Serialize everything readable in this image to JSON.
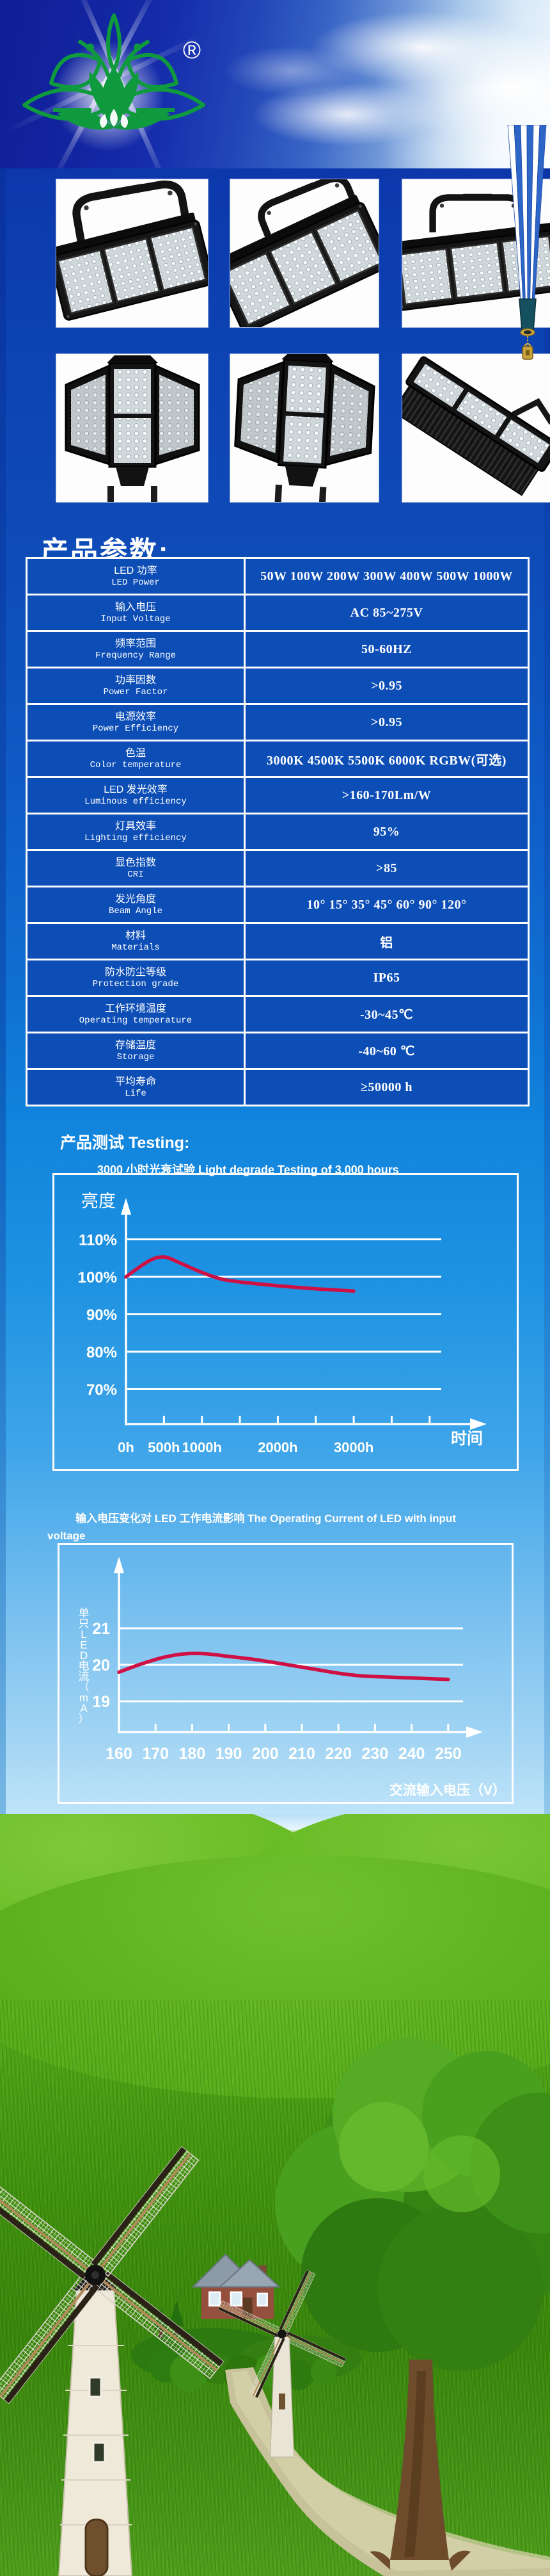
{
  "header": {
    "registered_mark": "®",
    "logo_icon": "lotus-logo"
  },
  "colors": {
    "accent_curve": "#ce1045",
    "table_cell_blue": "#0d4eb6",
    "deep_blue": "#0c38ac",
    "sky_light": "#bfe4f9",
    "grass_green": "#55a819",
    "logo_green": "#0f9a3e"
  },
  "sections": {
    "params_title": "产品参数:",
    "testing_title": "产品测试 Testing:",
    "degrade_subtitle": "3000 小时光衰试验  Light degrade Testing of 3,000 hours",
    "current_line1": "输入电压变化对  LED 工作电流影响   The Operating Current of LED with input",
    "current_line2": "voltage"
  },
  "spec_table": {
    "rows": [
      {
        "cn": "LED 功率",
        "en": "LED Power",
        "value": "50W 100W 200W 300W 400W 500W 1000W"
      },
      {
        "cn": "输入电压",
        "en": "Input Voltage",
        "value": "AC 85~275V"
      },
      {
        "cn": "频率范围",
        "en": "Frequency Range",
        "value": "50-60HZ"
      },
      {
        "cn": "功率因数",
        "en": "Power Factor",
        "value": ">0.95"
      },
      {
        "cn": "电源效率",
        "en": "Power Efficiency",
        "value": ">0.95"
      },
      {
        "cn": "色温",
        "en": "Color temperature",
        "value": "3000K  4500K  5500K  6000K  RGBW(可选)"
      },
      {
        "cn": "LED 发光效率",
        "en": "Luminous efficiency",
        "value": ">160-170Lm/W"
      },
      {
        "cn": "灯具效率",
        "en": "Lighting efficiency",
        "value": "95%"
      },
      {
        "cn": "显色指数",
        "en": "CRI",
        "value": ">85"
      },
      {
        "cn": "发光角度",
        "en": "Beam Angle",
        "value": "10°  15°  35°  45°  60°  90°  120°"
      },
      {
        "cn": "材料",
        "en": "Materials",
        "value": "铝"
      },
      {
        "cn": "防水防尘等级",
        "en": "Protection grade",
        "value": "IP65"
      },
      {
        "cn": "工作环境温度",
        "en": "Operating temperature",
        "value": "-30~45℃"
      },
      {
        "cn": "存储温度",
        "en": "Storage",
        "value": "-40~60 ℃"
      },
      {
        "cn": "平均寿命",
        "en": "Life",
        "value": "≥50000 h"
      }
    ]
  },
  "chart_data": [
    {
      "type": "line",
      "title_cn": "3000 小时光衰试验",
      "title_en": "Light degrade Testing of 3,000 hours",
      "ylabel": "亮度",
      "xlabel": "时间",
      "grid": "horizontal",
      "legend_position": "none",
      "ylim": [
        65,
        113
      ],
      "xlim": [
        0,
        4200
      ],
      "yticks": [
        {
          "v": 110,
          "label": "110%"
        },
        {
          "v": 100,
          "label": "100%"
        },
        {
          "v": 90,
          "label": "90%"
        },
        {
          "v": 80,
          "label": "80%"
        },
        {
          "v": 70,
          "label": "70%"
        }
      ],
      "xticks": [
        0,
        500,
        1000,
        1500,
        2000,
        2500,
        3000,
        3500,
        4000
      ],
      "xtick_labels": [
        {
          "v": 0,
          "label": "0h"
        },
        {
          "v": 500,
          "label": "500h"
        },
        {
          "v": 1000,
          "label": "1000h"
        },
        {
          "v": 2000,
          "label": "2000h"
        },
        {
          "v": 3000,
          "label": "3000h"
        }
      ],
      "series": [
        {
          "name": "relative-brightness",
          "color": "#ce1045",
          "points": [
            [
              0,
              100
            ],
            [
              300,
              104.2
            ],
            [
              500,
              105.3
            ],
            [
              700,
              103.8
            ],
            [
              900,
              102
            ],
            [
              1100,
              100.4
            ],
            [
              1300,
              99.2
            ],
            [
              1600,
              98.4
            ],
            [
              2000,
              97.6
            ],
            [
              2500,
              96.8
            ],
            [
              3000,
              96.2
            ]
          ]
        }
      ]
    },
    {
      "type": "line",
      "title_cn": "输入电压变化对 LED 工作电流影响",
      "title_en": "The Operating Current of LED with input voltage",
      "ylabel": "单只LED电流（mA）",
      "xlabel": "交流输入电压（V）",
      "grid": "horizontal",
      "legend_position": "none",
      "ylim": [
        18.2,
        22
      ],
      "xlim": [
        160,
        252
      ],
      "yticks": [
        {
          "v": 21,
          "label": "21"
        },
        {
          "v": 20,
          "label": "20"
        },
        {
          "v": 19,
          "label": "19"
        }
      ],
      "xticks": [
        170,
        180,
        190,
        200,
        210,
        220,
        230,
        240,
        250
      ],
      "xtick_labels": [
        {
          "v": 160,
          "label": "160"
        },
        {
          "v": 170,
          "label": "170"
        },
        {
          "v": 180,
          "label": "180"
        },
        {
          "v": 190,
          "label": "190"
        },
        {
          "v": 200,
          "label": "200"
        },
        {
          "v": 210,
          "label": "210"
        },
        {
          "v": 220,
          "label": "220"
        },
        {
          "v": 230,
          "label": "230"
        },
        {
          "v": 240,
          "label": "240"
        },
        {
          "v": 250,
          "label": "250"
        }
      ],
      "series": [
        {
          "name": "led-current",
          "color": "#ce1045",
          "points": [
            [
              160,
              19.8
            ],
            [
              166,
              20.02
            ],
            [
              172,
              20.2
            ],
            [
              178,
              20.3
            ],
            [
              184,
              20.3
            ],
            [
              190,
              20.23
            ],
            [
              196,
              20.16
            ],
            [
              202,
              20.07
            ],
            [
              208,
              19.97
            ],
            [
              214,
              19.87
            ],
            [
              220,
              19.77
            ],
            [
              226,
              19.7
            ],
            [
              232,
              19.67
            ],
            [
              240,
              19.64
            ],
            [
              250,
              19.6
            ]
          ]
        }
      ]
    }
  ]
}
